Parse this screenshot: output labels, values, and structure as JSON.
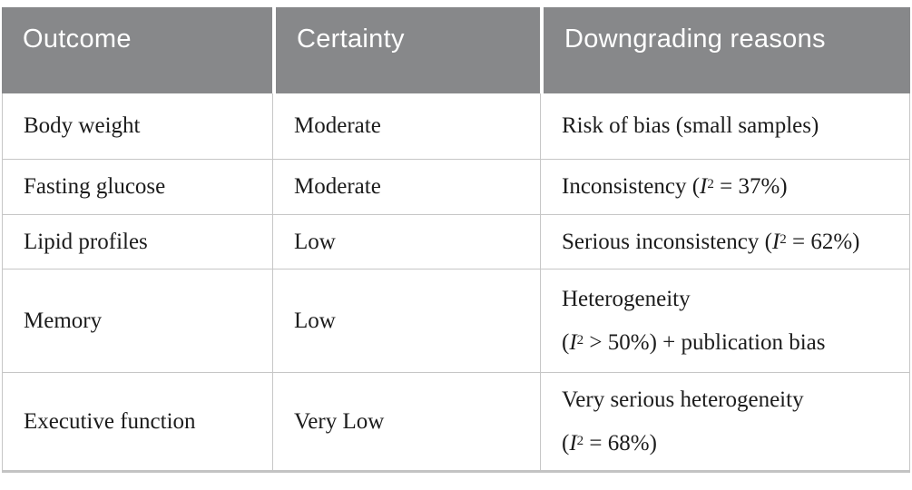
{
  "colors": {
    "header_bg": "#87888a",
    "header_text": "#ffffff",
    "body_text": "#1c1c1c",
    "grid_line": "#c6c6c6",
    "page_bg": "#ffffff"
  },
  "table": {
    "headers": [
      "Outcome",
      "Certainty",
      "Downgrading reasons"
    ],
    "rows": [
      {
        "outcome": "Body weight",
        "certainty": "Moderate",
        "reason": {
          "line1": {
            "pre": "Risk of bias (small samples)",
            "var": "",
            "sup": "",
            "post": ""
          }
        }
      },
      {
        "outcome": "Fasting glucose",
        "certainty": "Moderate",
        "reason": {
          "line1": {
            "pre": "Inconsistency (",
            "var": "I",
            "sup": "2",
            "post": " = 37%)"
          }
        }
      },
      {
        "outcome": "Lipid profiles",
        "certainty": "Low",
        "reason": {
          "line1": {
            "pre": "Serious inconsistency (",
            "var": "I",
            "sup": "2",
            "post": " = 62%)"
          }
        }
      },
      {
        "outcome": "Memory",
        "certainty": "Low",
        "reason": {
          "line1": {
            "pre": "Heterogeneity",
            "var": "",
            "sup": "",
            "post": ""
          },
          "line2": {
            "pre": "(",
            "var": "I",
            "sup": "2",
            "post": " > 50%) + publication bias"
          }
        }
      },
      {
        "outcome": "Executive function",
        "certainty": "Very Low",
        "reason": {
          "line1": {
            "pre": "Very serious heterogeneity",
            "var": "",
            "sup": "",
            "post": ""
          },
          "line2": {
            "pre": "(",
            "var": "I",
            "sup": "2",
            "post": " = 68%)"
          }
        }
      }
    ]
  }
}
